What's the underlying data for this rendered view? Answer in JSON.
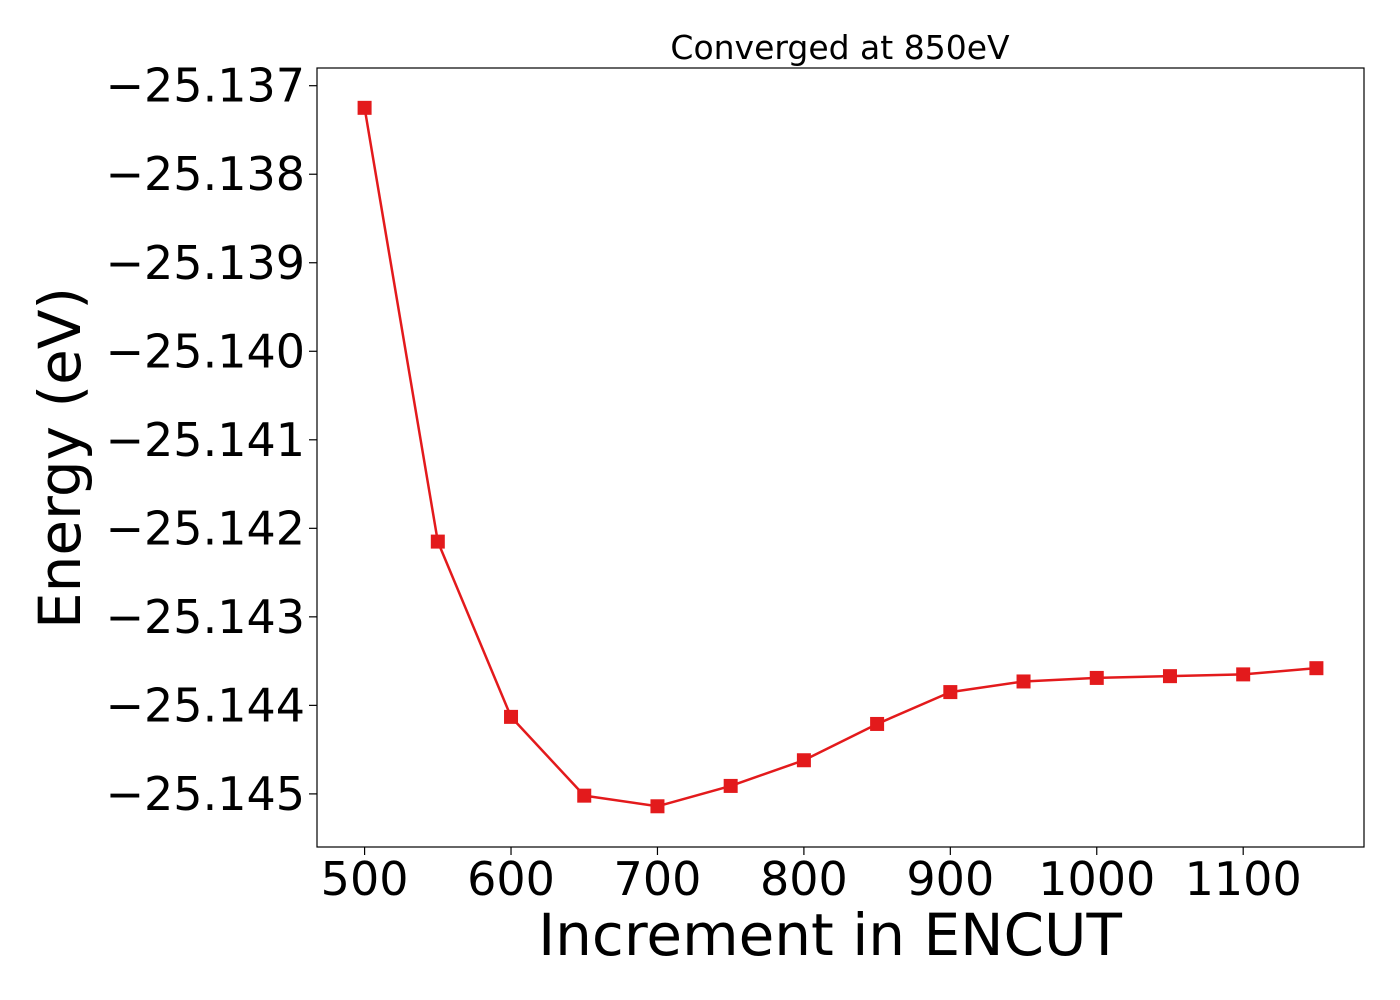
{
  "chart_data": {
    "type": "line",
    "title": "Converged at 850eV",
    "xlabel": "Increment in ENCUT",
    "ylabel": "Energy (eV)",
    "x": [
      500,
      550,
      600,
      650,
      700,
      750,
      800,
      850,
      900,
      950,
      1000,
      1050,
      1100,
      1150
    ],
    "series": [
      {
        "values": [
          -25.13725,
          -25.14215,
          -25.14413,
          -25.14502,
          -25.14514,
          -25.14491,
          -25.14462,
          -25.14421,
          -25.14385,
          -25.14373,
          -25.14369,
          -25.14367,
          -25.14365,
          -25.14358
        ],
        "color": "#e31a1c",
        "marker": "square"
      }
    ],
    "xlim": [
      467.5,
      1182.5
    ],
    "ylim": [
      -25.1456,
      -25.1368
    ],
    "xticks": [
      500,
      600,
      700,
      800,
      900,
      1000,
      1100
    ],
    "xtick_labels": [
      "500",
      "600",
      "700",
      "800",
      "900",
      "1000",
      "1100"
    ],
    "yticks": [
      -25.137,
      -25.138,
      -25.139,
      -25.14,
      -25.141,
      -25.142,
      -25.143,
      -25.144,
      -25.145
    ],
    "ytick_labels": [
      "−25.137",
      "−25.138",
      "−25.139",
      "−25.140",
      "−25.141",
      "−25.142",
      "−25.143",
      "−25.144",
      "−25.145"
    ],
    "grid": false,
    "legend": "none"
  }
}
